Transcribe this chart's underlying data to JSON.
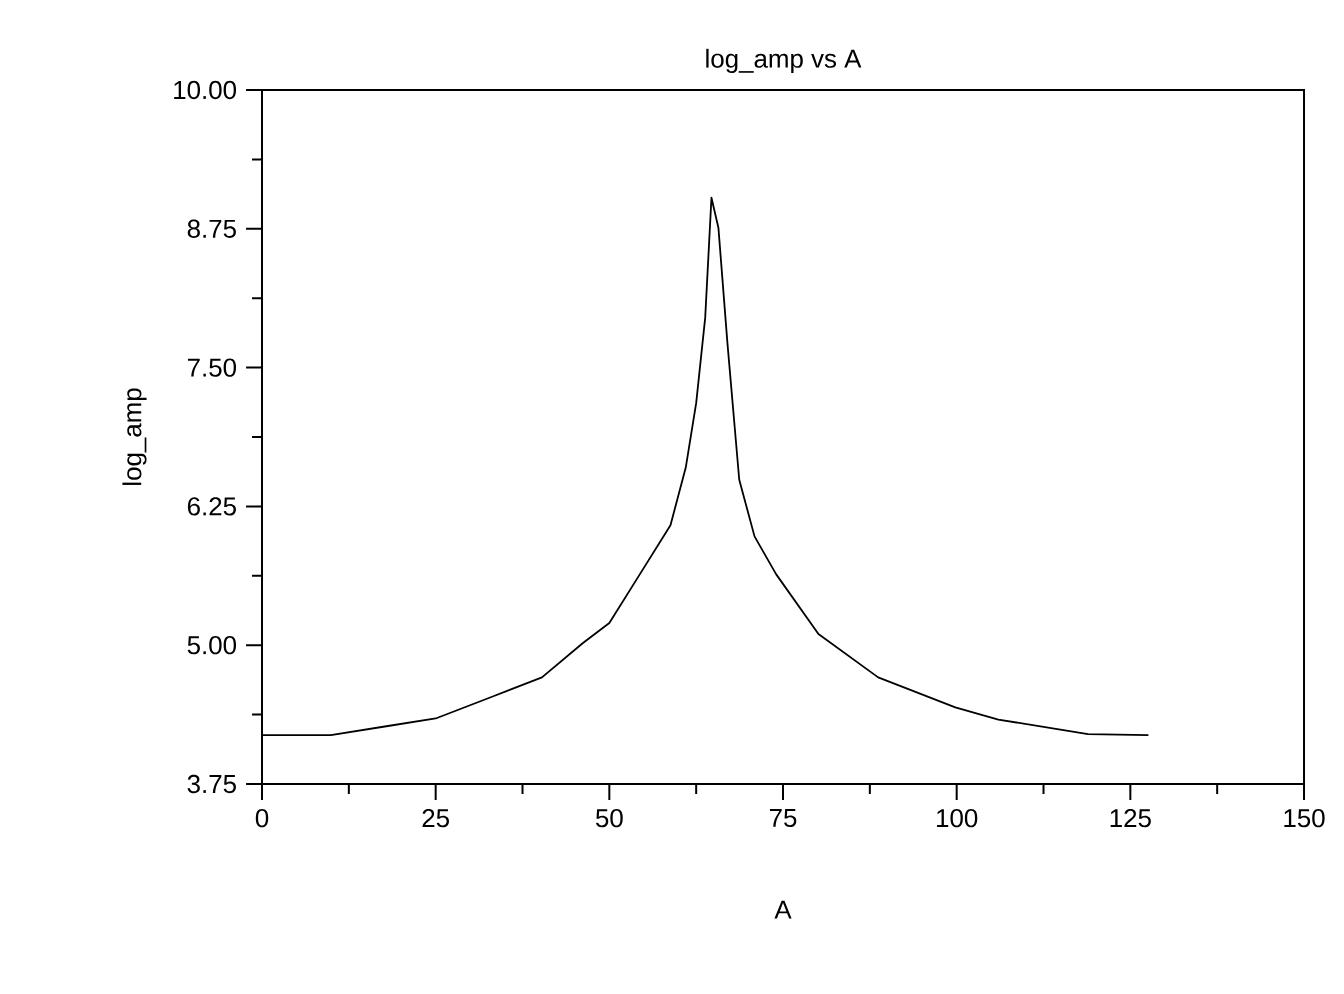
{
  "chart_data": {
    "type": "line",
    "title": "log_amp vs A",
    "xlabel": "A",
    "ylabel": "log_amp",
    "x": [
      0,
      9.9,
      17.9,
      25,
      33.3,
      40.3,
      46.2,
      50,
      54.2,
      58.8,
      61,
      62.5,
      63.8,
      64.7,
      65.7,
      67,
      68.7,
      70.9,
      74,
      80.1,
      88.7,
      99.8,
      106,
      118.9,
      127.6
    ],
    "series": [
      {
        "color": "#000000",
        "values": [
          4.19,
          4.19,
          4.27,
          4.34,
          4.54,
          4.71,
          5.02,
          5.2,
          5.62,
          6.08,
          6.6,
          7.18,
          7.95,
          9.03,
          8.76,
          7.72,
          6.49,
          5.98,
          5.64,
          5.1,
          4.71,
          4.44,
          4.33,
          4.2,
          4.19
        ]
      }
    ],
    "xlim": [
      0,
      150
    ],
    "ylim": [
      3.75,
      10
    ],
    "xticks": [
      0,
      25,
      50,
      75,
      100,
      125,
      150
    ],
    "yticks": [
      {
        "value": 3.75,
        "label": "3.75"
      },
      {
        "value": 5,
        "label": "5.00"
      },
      {
        "value": 6.25,
        "label": "6.25"
      },
      {
        "value": 7.5,
        "label": "7.50"
      },
      {
        "value": 8.75,
        "label": "8.75"
      },
      {
        "value": 10,
        "label": "10.00"
      }
    ],
    "grid": false,
    "marker": "none",
    "line_style": "solid"
  }
}
